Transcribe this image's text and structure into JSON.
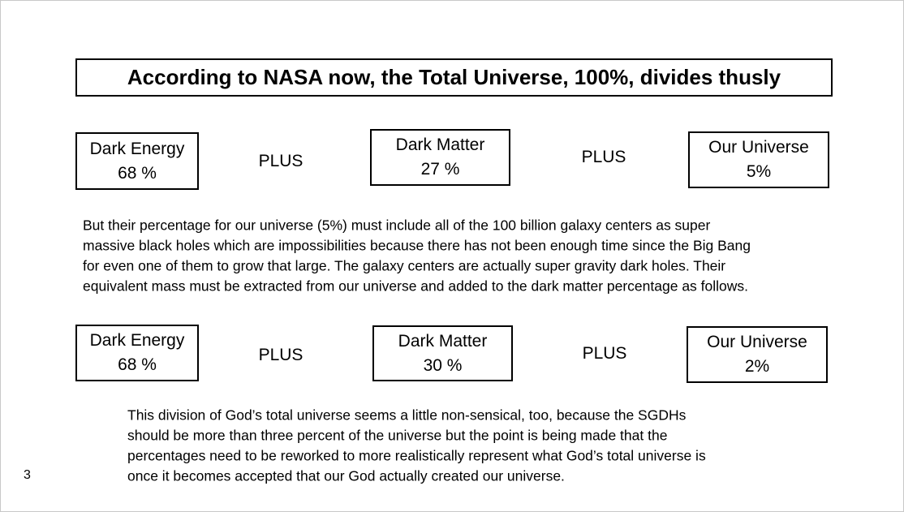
{
  "title": "According to NASA now, the Total Universe, 100%, divides thusly",
  "rows": [
    {
      "boxes": [
        {
          "label": "Dark Energy",
          "value": "68 %"
        },
        {
          "label": "Dark Matter",
          "value": "27 %"
        },
        {
          "label": "Our Universe",
          "value": "5%"
        }
      ],
      "connectors": [
        "PLUS",
        "PLUS"
      ]
    },
    {
      "boxes": [
        {
          "label": "Dark Energy",
          "value": "68 %"
        },
        {
          "label": "Dark Matter",
          "value": "30 %"
        },
        {
          "label": "Our Universe",
          "value": "2%"
        }
      ],
      "connectors": [
        "PLUS",
        "PLUS"
      ]
    }
  ],
  "paragraphs": [
    [
      "But their percentage for our universe (5%) must include all of the 100 billion galaxy centers as super",
      "massive black holes which are impossibilities because there has not been enough time since the Big Bang",
      "for even one of them to grow that large. The galaxy centers are actually super gravity dark holes. Their",
      "equivalent mass must be extracted from our universe and added to the dark matter percentage as follows."
    ],
    [
      "This division of God’s total universe seems a little non-sensical, too, because the SGDHs",
      "should be more than three percent of the universe but the point is being made that the",
      "percentages need to be reworked to more realistically represent what God’s total universe is",
      "once it becomes accepted that our God actually created our universe."
    ]
  ],
  "page_number": "3"
}
